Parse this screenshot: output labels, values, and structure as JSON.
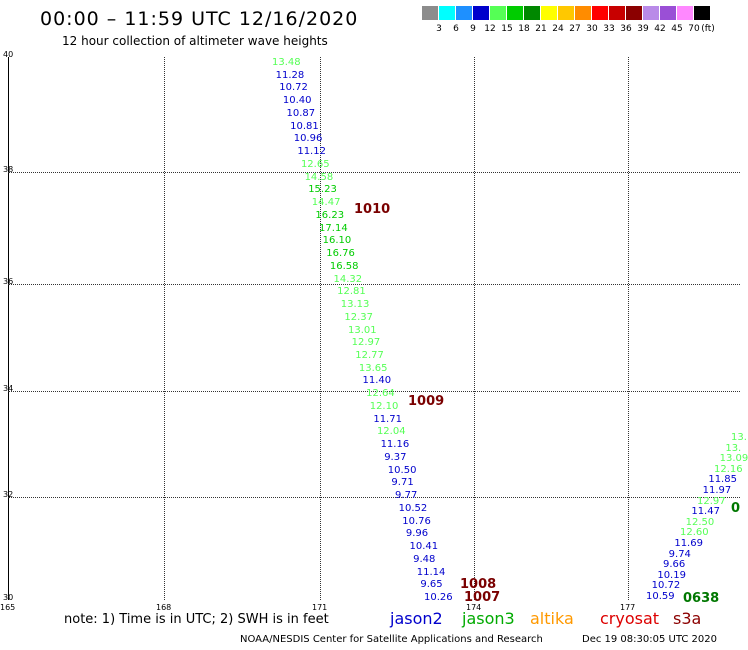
{
  "header": {
    "title": "00:00 – 11:59 UTC 12/16/2020",
    "subtitle": "12 hour collection of altimeter wave heights"
  },
  "legend": {
    "unit": "(ft)",
    "colors": [
      {
        "label": "3",
        "color": "#8c8c8c"
      },
      {
        "label": "6",
        "color": "#00ffff"
      },
      {
        "label": "9",
        "color": "#1e90ff"
      },
      {
        "label": "12",
        "color": "#0000cc"
      },
      {
        "label": "15",
        "color": "#55ff55"
      },
      {
        "label": "18",
        "color": "#00cc00"
      },
      {
        "label": "21",
        "color": "#008800"
      },
      {
        "label": "24",
        "color": "#ffff00"
      },
      {
        "label": "27",
        "color": "#ffc800"
      },
      {
        "label": "30",
        "color": "#ff8c00"
      },
      {
        "label": "33",
        "color": "#ff0000"
      },
      {
        "label": "36",
        "color": "#c80000"
      },
      {
        "label": "39",
        "color": "#8b0000"
      },
      {
        "label": "42",
        "color": "#b98ae8"
      },
      {
        "label": "45",
        "color": "#9a4fd6"
      },
      {
        "label": "70",
        "color": "#ff88ff"
      },
      {
        "label": "",
        "color": "#000000"
      }
    ]
  },
  "axes": {
    "y_ticks": [
      "40",
      "38",
      "36",
      "34",
      "32",
      "30"
    ],
    "x_ticks": [
      "165",
      "168",
      "171",
      "174",
      "177"
    ]
  },
  "wave_points_track1": [
    {
      "v": "13.48",
      "c": "#55ff55"
    },
    {
      "v": "11.28",
      "c": "#0000cc"
    },
    {
      "v": "10.72",
      "c": "#0000cc"
    },
    {
      "v": "10.40",
      "c": "#0000cc"
    },
    {
      "v": "10.87",
      "c": "#0000cc"
    },
    {
      "v": "10.81",
      "c": "#0000cc"
    },
    {
      "v": "10.96",
      "c": "#0000cc"
    },
    {
      "v": "11.12",
      "c": "#0000cc"
    },
    {
      "v": "12.65",
      "c": "#55ff55"
    },
    {
      "v": "14.58",
      "c": "#55ff55"
    },
    {
      "v": "15.23",
      "c": "#00cc00"
    },
    {
      "v": "14.47",
      "c": "#55ff55"
    },
    {
      "v": "16.23",
      "c": "#00cc00"
    },
    {
      "v": "17.14",
      "c": "#00cc00"
    },
    {
      "v": "16.10",
      "c": "#00cc00"
    },
    {
      "v": "16.76",
      "c": "#00cc00"
    },
    {
      "v": "16.58",
      "c": "#00cc00"
    },
    {
      "v": "14.32",
      "c": "#55ff55"
    },
    {
      "v": "12.81",
      "c": "#55ff55"
    },
    {
      "v": "13.13",
      "c": "#55ff55"
    },
    {
      "v": "12.37",
      "c": "#55ff55"
    },
    {
      "v": "13.01",
      "c": "#55ff55"
    },
    {
      "v": "12.97",
      "c": "#55ff55"
    },
    {
      "v": "12.77",
      "c": "#55ff55"
    },
    {
      "v": "13.65",
      "c": "#55ff55"
    },
    {
      "v": "11.40",
      "c": "#0000cc"
    },
    {
      "v": "12.64",
      "c": "#55ff55"
    },
    {
      "v": "12.10",
      "c": "#55ff55"
    },
    {
      "v": "11.71",
      "c": "#0000cc"
    },
    {
      "v": "12.04",
      "c": "#55ff55"
    },
    {
      "v": "11.16",
      "c": "#0000cc"
    },
    {
      "v": "9.37",
      "c": "#0000cc"
    },
    {
      "v": "10.50",
      "c": "#0000cc"
    },
    {
      "v": "9.71",
      "c": "#0000cc"
    },
    {
      "v": "9.77",
      "c": "#0000cc"
    },
    {
      "v": "10.52",
      "c": "#0000cc"
    },
    {
      "v": "10.76",
      "c": "#0000cc"
    },
    {
      "v": "9.96",
      "c": "#0000cc"
    },
    {
      "v": "10.41",
      "c": "#0000cc"
    },
    {
      "v": "9.48",
      "c": "#0000cc"
    },
    {
      "v": "11.14",
      "c": "#0000cc"
    },
    {
      "v": "9.65",
      "c": "#0000cc"
    },
    {
      "v": "10.26",
      "c": "#0000cc"
    }
  ],
  "wave_points_track2": [
    {
      "v": "13.",
      "c": "#55ff55"
    },
    {
      "v": "13.",
      "c": "#55ff55"
    },
    {
      "v": "13.09",
      "c": "#55ff55"
    },
    {
      "v": "12.16",
      "c": "#55ff55"
    },
    {
      "v": "11.85",
      "c": "#0000cc"
    },
    {
      "v": "11.97",
      "c": "#0000cc"
    },
    {
      "v": "12.97",
      "c": "#55ff55"
    },
    {
      "v": "11.47",
      "c": "#0000cc"
    },
    {
      "v": "12.50",
      "c": "#55ff55"
    },
    {
      "v": "12.60",
      "c": "#55ff55"
    },
    {
      "v": "11.69",
      "c": "#0000cc"
    },
    {
      "v": "9.74",
      "c": "#0000cc"
    },
    {
      "v": "9.66",
      "c": "#0000cc"
    },
    {
      "v": "10.19",
      "c": "#0000cc"
    },
    {
      "v": "10.72",
      "c": "#0000cc"
    },
    {
      "v": "10.59",
      "c": "#0000cc"
    }
  ],
  "pressure_labels": [
    "1010",
    "1009",
    "1008",
    "1007",
    "0638",
    "0"
  ],
  "note": "note: 1) Time is in UTC; 2) SWH is in feet",
  "satellites": [
    {
      "name": "jason2",
      "color": "#0000cc"
    },
    {
      "name": "jason3",
      "color": "#00aa00"
    },
    {
      "name": "altika",
      "color": "#ff9900"
    },
    {
      "name": "cryosat",
      "color": "#dd0000"
    },
    {
      "name": "s3a",
      "color": "#8b0000"
    }
  ],
  "footer": "NOAA/NESDIS Center for Satellite Applications and Research",
  "timestamp": "Dec 19 08:30:05 UTC 2020"
}
